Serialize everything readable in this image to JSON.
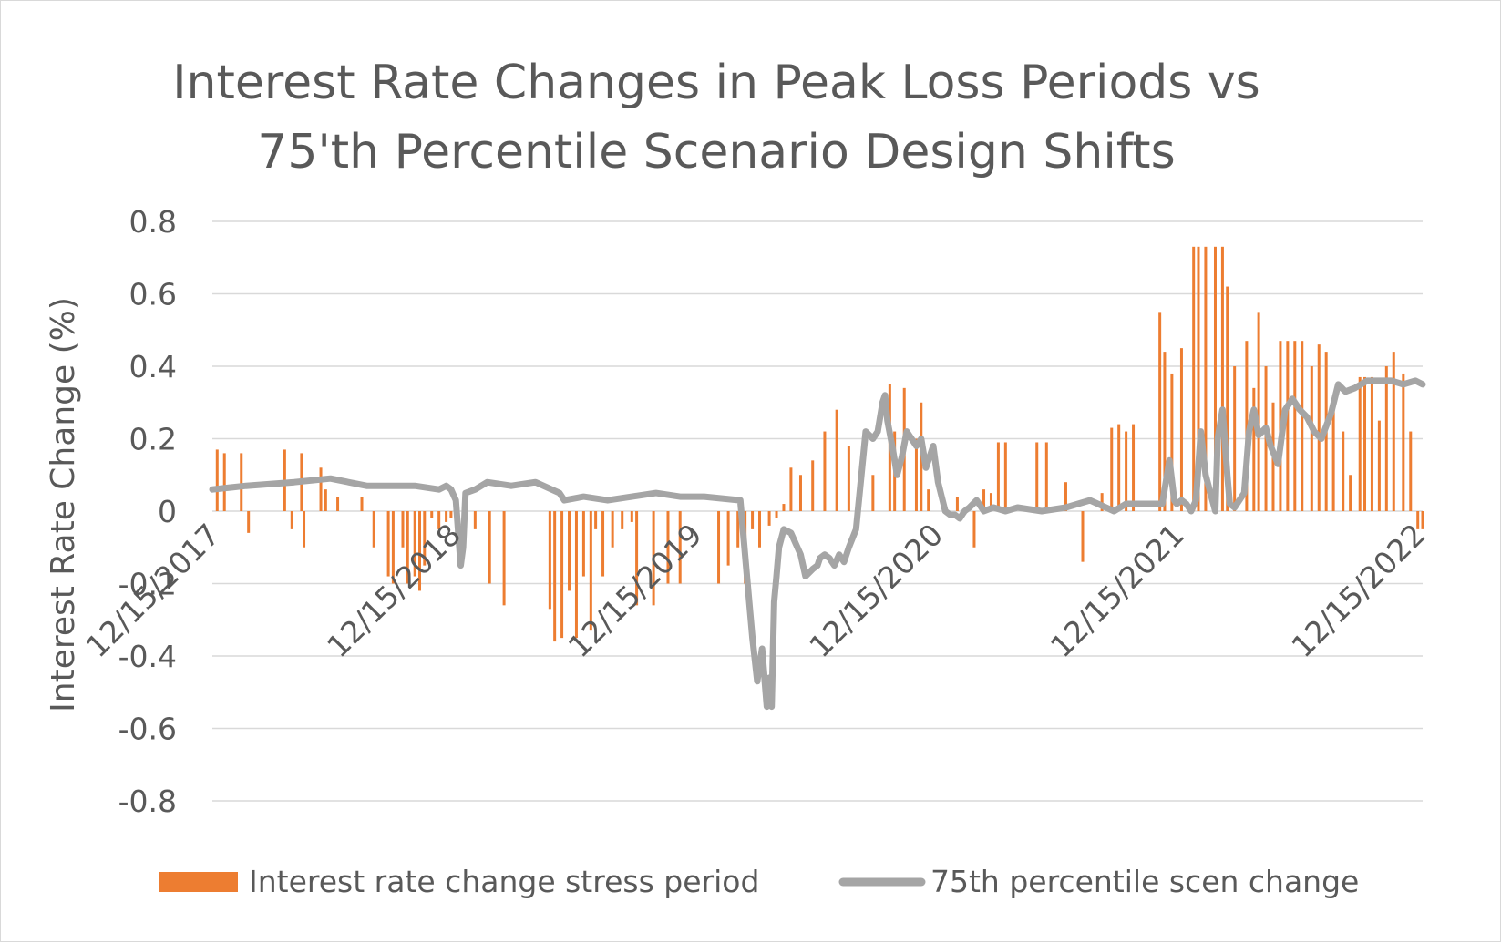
{
  "chart_data": {
    "type": "bar",
    "title_lines": [
      "Interest Rate Changes in Peak Loss Periods vs",
      "75'th Percentile Scenario Design Shifts"
    ],
    "xlabel": "",
    "ylabel": "Interest Rate Change (%)",
    "ylim": [
      -0.8,
      0.8
    ],
    "y_ticks": [
      0.8,
      0.6,
      0.4,
      0.2,
      0,
      -0.2,
      -0.4,
      -0.6,
      -0.8
    ],
    "y_tick_labels": [
      "0.8",
      "0.6",
      "0.4",
      "0.2",
      "0",
      "-0.2",
      "-0.4",
      "-0.6",
      "-0.8"
    ],
    "x_range_years": [
      2017.96,
      2022.98
    ],
    "x_ticks": [
      2017.96,
      2018.96,
      2019.96,
      2020.96,
      2021.96,
      2022.96
    ],
    "x_tick_labels": [
      "12/15/2017",
      "12/15/2018",
      "12/15/2019",
      "12/15/2020",
      "12/15/2021",
      "12/15/2022"
    ],
    "gridlines": true,
    "legend_position": "bottom",
    "colors": {
      "bars": "#ed7d31",
      "line": "#a5a5a5",
      "grid": "#d9d9d9",
      "text": "#595959"
    },
    "series": [
      {
        "name": "Interest rate change stress period",
        "type": "bar",
        "x": [
          2017.98,
          2018.01,
          2018.08,
          2018.11,
          2018.26,
          2018.29,
          2018.33,
          2018.34,
          2018.41,
          2018.43,
          2018.48,
          2018.58,
          2018.63,
          2018.69,
          2018.71,
          2018.75,
          2018.77,
          2018.8,
          2018.82,
          2018.84,
          2018.87,
          2018.9,
          2018.93,
          2018.95,
          2019.05,
          2019.11,
          2019.17,
          2019.36,
          2019.38,
          2019.41,
          2019.44,
          2019.47,
          2019.5,
          2019.53,
          2019.55,
          2019.58,
          2019.62,
          2019.66,
          2019.7,
          2019.72,
          2019.79,
          2019.85,
          2019.9,
          2020.06,
          2020.1,
          2020.14,
          2020.17,
          2020.2,
          2020.23,
          2020.27,
          2020.3,
          2020.33,
          2020.36,
          2020.4,
          2020.45,
          2020.5,
          2020.55,
          2020.6,
          2020.7,
          2020.77,
          2020.79,
          2020.83,
          2020.88,
          2020.9,
          2020.93,
          2021.05,
          2021.12,
          2021.16,
          2021.19,
          2021.22,
          2021.25,
          2021.38,
          2021.42,
          2021.5,
          2021.57,
          2021.65,
          2021.69,
          2021.72,
          2021.75,
          2021.78,
          2021.89,
          2021.91,
          2021.94,
          2021.98,
          2022.03,
          2022.05,
          2022.08,
          2022.12,
          2022.15,
          2022.17,
          2022.2,
          2022.25,
          2022.28,
          2022.3,
          2022.33,
          2022.36,
          2022.39,
          2022.42,
          2022.45,
          2022.48,
          2022.52,
          2022.55,
          2022.58,
          2022.61,
          2022.65,
          2022.68,
          2022.72,
          2022.74,
          2022.77,
          2022.8,
          2022.83,
          2022.86,
          2022.9,
          2022.93,
          2022.96,
          2022.98
        ],
        "values": [
          0.17,
          0.16,
          0.16,
          -0.06,
          0.17,
          -0.05,
          0.16,
          -0.1,
          0.12,
          0.06,
          0.04,
          0.04,
          -0.1,
          -0.18,
          -0.2,
          -0.1,
          -0.2,
          -0.18,
          -0.22,
          -0.15,
          -0.02,
          -0.05,
          -0.03,
          -0.02,
          -0.05,
          -0.2,
          -0.26,
          -0.27,
          -0.36,
          -0.35,
          -0.22,
          -0.35,
          -0.18,
          -0.33,
          -0.05,
          -0.18,
          -0.1,
          -0.05,
          -0.03,
          -0.26,
          -0.26,
          -0.2,
          -0.2,
          -0.2,
          -0.15,
          -0.1,
          -0.2,
          -0.05,
          -0.1,
          -0.04,
          -0.02,
          0.02,
          0.12,
          0.1,
          0.14,
          0.22,
          0.28,
          0.18,
          0.1,
          0.35,
          0.22,
          0.34,
          0.2,
          0.3,
          0.06,
          0.04,
          -0.1,
          0.06,
          0.05,
          0.19,
          0.19,
          0.19,
          0.19,
          0.08,
          -0.14,
          0.05,
          0.23,
          0.24,
          0.22,
          0.24,
          0.55,
          0.44,
          0.38,
          0.45,
          0.73,
          0.73,
          0.73,
          0.73,
          0.73,
          0.62,
          0.4,
          0.47,
          0.34,
          0.55,
          0.4,
          0.3,
          0.47,
          0.47,
          0.47,
          0.47,
          0.4,
          0.46,
          0.44,
          0.3,
          0.22,
          0.1,
          0.37,
          0.37,
          0.37,
          0.25,
          0.4,
          0.44,
          0.38,
          0.22,
          -0.05,
          -0.05
        ]
      },
      {
        "name": "75th percentile scen change",
        "type": "line",
        "x": [
          2017.96,
          2018.1,
          2018.3,
          2018.45,
          2018.6,
          2018.8,
          2018.9,
          2018.93,
          2018.95,
          2018.97,
          2018.99,
          2019.0,
          2019.01,
          2019.05,
          2019.1,
          2019.2,
          2019.3,
          2019.4,
          2019.42,
          2019.5,
          2019.6,
          2019.7,
          2019.8,
          2019.9,
          2020.0,
          2020.15,
          2020.18,
          2020.2,
          2020.22,
          2020.24,
          2020.26,
          2020.27,
          2020.28,
          2020.29,
          2020.3,
          2020.31,
          2020.33,
          2020.36,
          2020.4,
          2020.42,
          2020.45,
          2020.47,
          2020.48,
          2020.5,
          2020.52,
          2020.54,
          2020.56,
          2020.58,
          2020.6,
          2020.63,
          2020.67,
          2020.7,
          2020.72,
          2020.74,
          2020.75,
          2020.76,
          2020.78,
          2020.8,
          2020.82,
          2020.84,
          2020.86,
          2020.88,
          2020.9,
          2020.92,
          2020.95,
          2020.97,
          2021.0,
          2021.02,
          2021.04,
          2021.06,
          2021.08,
          2021.1,
          2021.13,
          2021.16,
          2021.2,
          2021.25,
          2021.3,
          2021.4,
          2021.5,
          2021.6,
          2021.7,
          2021.75,
          2021.8,
          2021.85,
          2021.9,
          2021.93,
          2021.95,
          2021.96,
          2021.98,
          2022.0,
          2022.02,
          2022.04,
          2022.06,
          2022.08,
          2022.1,
          2022.12,
          2022.13,
          2022.15,
          2022.17,
          2022.18,
          2022.2,
          2022.22,
          2022.24,
          2022.26,
          2022.28,
          2022.3,
          2022.33,
          2022.35,
          2022.38,
          2022.41,
          2022.44,
          2022.47,
          2022.5,
          2022.53,
          2022.56,
          2022.6,
          2022.63,
          2022.66,
          2022.7,
          2022.75,
          2022.8,
          2022.85,
          2022.9,
          2022.95,
          2022.98
        ],
        "values": [
          0.06,
          0.07,
          0.08,
          0.09,
          0.07,
          0.07,
          0.06,
          0.07,
          0.06,
          0.03,
          -0.15,
          -0.1,
          0.05,
          0.06,
          0.08,
          0.07,
          0.08,
          0.05,
          0.03,
          0.04,
          0.03,
          0.04,
          0.05,
          0.04,
          0.04,
          0.03,
          -0.2,
          -0.35,
          -0.47,
          -0.38,
          -0.54,
          -0.46,
          -0.54,
          -0.25,
          -0.18,
          -0.1,
          -0.05,
          -0.06,
          -0.12,
          -0.18,
          -0.16,
          -0.15,
          -0.13,
          -0.12,
          -0.13,
          -0.15,
          -0.12,
          -0.14,
          -0.1,
          -0.05,
          0.22,
          0.2,
          0.22,
          0.3,
          0.32,
          0.25,
          0.18,
          0.1,
          0.15,
          0.22,
          0.2,
          0.18,
          0.2,
          0.12,
          0.18,
          0.08,
          0.0,
          -0.01,
          -0.01,
          -0.02,
          0.0,
          0.01,
          0.03,
          0.0,
          0.01,
          0.0,
          0.01,
          0.0,
          0.01,
          0.03,
          0.0,
          0.02,
          0.02,
          0.02,
          0.02,
          0.14,
          0.03,
          0.02,
          0.03,
          0.02,
          0.0,
          0.03,
          0.22,
          0.1,
          0.05,
          0.0,
          0.2,
          0.28,
          0.1,
          0.02,
          0.01,
          0.03,
          0.05,
          0.22,
          0.28,
          0.21,
          0.23,
          0.18,
          0.13,
          0.28,
          0.31,
          0.28,
          0.26,
          0.22,
          0.2,
          0.27,
          0.35,
          0.33,
          0.34,
          0.36,
          0.36,
          0.36,
          0.35,
          0.36,
          0.35
        ]
      }
    ]
  }
}
